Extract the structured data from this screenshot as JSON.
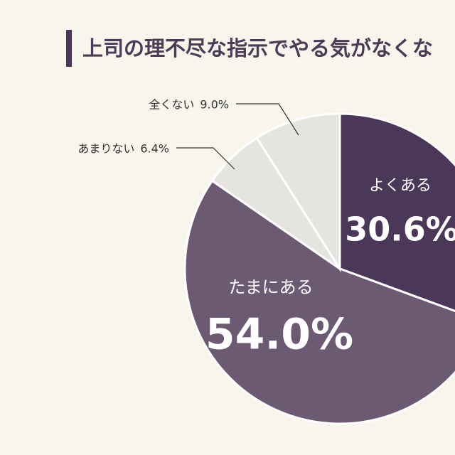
{
  "chart_data": {
    "type": "pie",
    "title": "上司の理不尽な指示でやる気がなくな",
    "categories": [
      "よくある",
      "たまにある",
      "あまりない",
      "全くない"
    ],
    "values": [
      30.6,
      54.0,
      6.4,
      9.0
    ],
    "value_labels": [
      "30.6%",
      "54.0%",
      "6.4%",
      "9.0%"
    ],
    "colors": [
      "#4b3858",
      "#6c5a73",
      "#e5e4e0",
      "#e5e4e0"
    ]
  }
}
